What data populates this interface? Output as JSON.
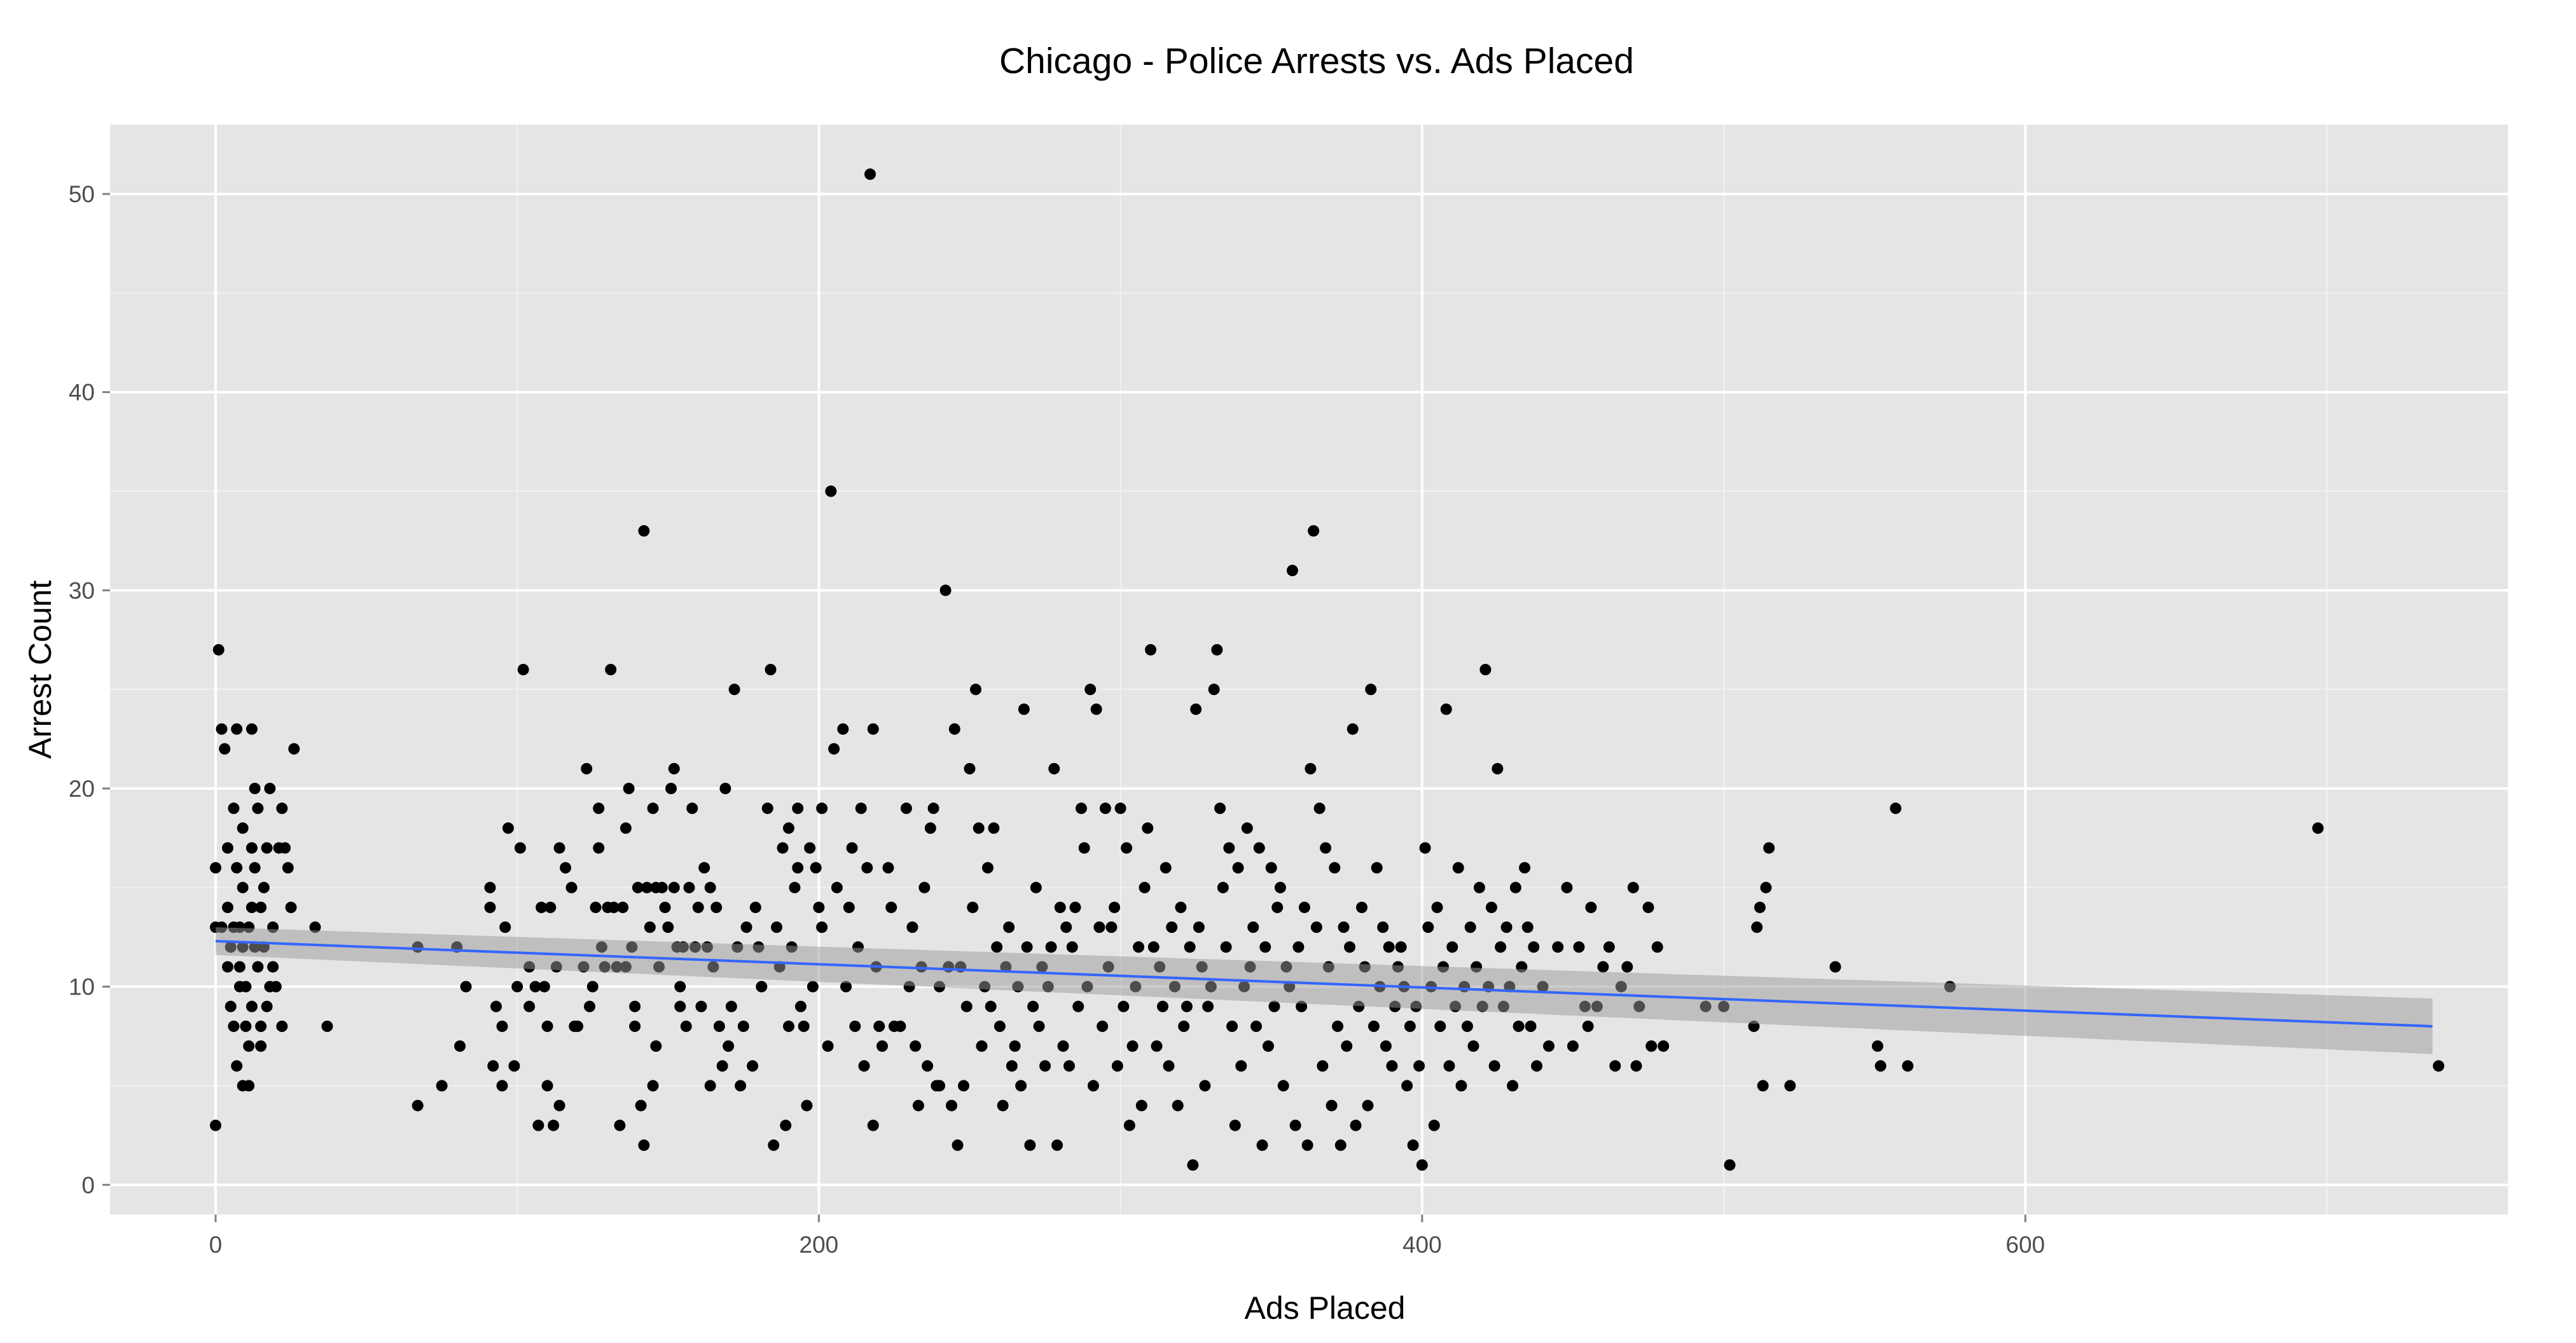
{
  "chart_data": {
    "type": "scatter",
    "title": "Chicago - Police Arrests vs. Ads Placed",
    "xlabel": "Ads Placed",
    "ylabel": "Arrest Count",
    "xlim": [
      -35,
      760
    ],
    "ylim": [
      -1.5,
      53.5
    ],
    "x_ticks": [
      0,
      200,
      400,
      600
    ],
    "y_ticks": [
      0,
      10,
      20,
      30,
      40,
      50
    ],
    "x_tick_labels": [
      "0",
      "200",
      "400",
      "600"
    ],
    "y_tick_labels": [
      "0",
      "10",
      "20",
      "30",
      "40",
      "50"
    ],
    "grid": true,
    "legend": "none",
    "colors": {
      "panel": "#e5e5e5",
      "grid_major": "#ffffff",
      "point": "#000000",
      "fit_line": "#3366ff",
      "confidence_band": "#999999"
    },
    "trend_line": {
      "method": "linear fit with confidence band",
      "x_start": 0,
      "y_start": 12.3,
      "x_end": 735,
      "y_end": 8.0,
      "band_start": [
        11.6,
        13.0
      ],
      "band_end": [
        6.6,
        9.4
      ]
    },
    "points": [
      [
        0,
        16
      ],
      [
        0,
        13
      ],
      [
        0,
        3
      ],
      [
        1,
        27
      ],
      [
        2,
        23
      ],
      [
        2,
        13
      ],
      [
        3,
        22
      ],
      [
        4,
        17
      ],
      [
        4,
        14
      ],
      [
        4,
        11
      ],
      [
        5,
        9
      ],
      [
        5,
        12
      ],
      [
        6,
        19
      ],
      [
        6,
        13
      ],
      [
        6,
        8
      ],
      [
        7,
        6
      ],
      [
        7,
        23
      ],
      [
        7,
        16
      ],
      [
        8,
        11
      ],
      [
        8,
        13
      ],
      [
        8,
        10
      ],
      [
        9,
        18
      ],
      [
        9,
        15
      ],
      [
        9,
        12
      ],
      [
        9,
        5
      ],
      [
        10,
        10
      ],
      [
        10,
        8
      ],
      [
        11,
        7
      ],
      [
        11,
        5
      ],
      [
        11,
        13
      ],
      [
        12,
        23
      ],
      [
        12,
        17
      ],
      [
        12,
        14
      ],
      [
        12,
        9
      ],
      [
        13,
        16
      ],
      [
        13,
        12
      ],
      [
        13,
        20
      ],
      [
        14,
        11
      ],
      [
        14,
        19
      ],
      [
        15,
        14
      ],
      [
        15,
        8
      ],
      [
        15,
        7
      ],
      [
        16,
        15
      ],
      [
        16,
        12
      ],
      [
        17,
        17
      ],
      [
        17,
        9
      ],
      [
        18,
        20
      ],
      [
        18,
        10
      ],
      [
        19,
        13
      ],
      [
        19,
        11
      ],
      [
        20,
        10
      ],
      [
        21,
        17
      ],
      [
        22,
        19
      ],
      [
        22,
        8
      ],
      [
        23,
        17
      ],
      [
        24,
        16
      ],
      [
        25,
        14
      ],
      [
        26,
        22
      ],
      [
        33,
        13
      ],
      [
        37,
        8
      ],
      [
        67,
        12
      ],
      [
        67,
        4
      ],
      [
        75,
        5
      ],
      [
        80,
        12
      ],
      [
        81,
        7
      ],
      [
        83,
        10
      ],
      [
        91,
        14
      ],
      [
        91,
        15
      ],
      [
        92,
        6
      ],
      [
        93,
        9
      ],
      [
        95,
        5
      ],
      [
        95,
        8
      ],
      [
        96,
        13
      ],
      [
        97,
        18
      ],
      [
        99,
        6
      ],
      [
        100,
        10
      ],
      [
        101,
        17
      ],
      [
        102,
        26
      ],
      [
        104,
        9
      ],
      [
        104,
        11
      ],
      [
        106,
        10
      ],
      [
        107,
        3
      ],
      [
        108,
        14
      ],
      [
        109,
        10
      ],
      [
        110,
        5
      ],
      [
        110,
        8
      ],
      [
        111,
        14
      ],
      [
        112,
        3
      ],
      [
        113,
        11
      ],
      [
        114,
        4
      ],
      [
        114,
        17
      ],
      [
        116,
        16
      ],
      [
        118,
        15
      ],
      [
        119,
        8
      ],
      [
        120,
        8
      ],
      [
        122,
        11
      ],
      [
        123,
        21
      ],
      [
        124,
        9
      ],
      [
        125,
        10
      ],
      [
        126,
        14
      ],
      [
        127,
        19
      ],
      [
        127,
        17
      ],
      [
        128,
        12
      ],
      [
        129,
        11
      ],
      [
        130,
        14
      ],
      [
        131,
        26
      ],
      [
        132,
        14
      ],
      [
        133,
        11
      ],
      [
        134,
        3
      ],
      [
        135,
        14
      ],
      [
        136,
        11
      ],
      [
        136,
        18
      ],
      [
        137,
        20
      ],
      [
        138,
        12
      ],
      [
        139,
        8
      ],
      [
        139,
        9
      ],
      [
        140,
        15
      ],
      [
        141,
        4
      ],
      [
        142,
        2
      ],
      [
        142,
        33
      ],
      [
        143,
        15
      ],
      [
        144,
        13
      ],
      [
        145,
        19
      ],
      [
        145,
        5
      ],
      [
        146,
        15
      ],
      [
        146,
        7
      ],
      [
        147,
        11
      ],
      [
        148,
        15
      ],
      [
        149,
        14
      ],
      [
        150,
        13
      ],
      [
        151,
        20
      ],
      [
        152,
        21
      ],
      [
        152,
        15
      ],
      [
        153,
        12
      ],
      [
        154,
        10
      ],
      [
        154,
        9
      ],
      [
        155,
        12
      ],
      [
        156,
        8
      ],
      [
        157,
        15
      ],
      [
        158,
        19
      ],
      [
        159,
        12
      ],
      [
        160,
        14
      ],
      [
        161,
        9
      ],
      [
        162,
        16
      ],
      [
        163,
        12
      ],
      [
        164,
        15
      ],
      [
        164,
        5
      ],
      [
        165,
        11
      ],
      [
        166,
        14
      ],
      [
        167,
        8
      ],
      [
        168,
        6
      ],
      [
        169,
        20
      ],
      [
        170,
        7
      ],
      [
        171,
        9
      ],
      [
        172,
        25
      ],
      [
        173,
        12
      ],
      [
        174,
        5
      ],
      [
        175,
        8
      ],
      [
        176,
        13
      ],
      [
        178,
        6
      ],
      [
        179,
        14
      ],
      [
        180,
        12
      ],
      [
        181,
        10
      ],
      [
        183,
        19
      ],
      [
        184,
        26
      ],
      [
        185,
        2
      ],
      [
        186,
        13
      ],
      [
        187,
        11
      ],
      [
        188,
        17
      ],
      [
        189,
        3
      ],
      [
        190,
        8
      ],
      [
        190,
        18
      ],
      [
        191,
        12
      ],
      [
        192,
        15
      ],
      [
        193,
        19
      ],
      [
        193,
        16
      ],
      [
        194,
        9
      ],
      [
        195,
        8
      ],
      [
        196,
        4
      ],
      [
        197,
        17
      ],
      [
        198,
        10
      ],
      [
        199,
        16
      ],
      [
        200,
        14
      ],
      [
        201,
        13
      ],
      [
        201,
        19
      ],
      [
        203,
        7
      ],
      [
        204,
        35
      ],
      [
        205,
        22
      ],
      [
        206,
        15
      ],
      [
        208,
        23
      ],
      [
        209,
        10
      ],
      [
        210,
        14
      ],
      [
        211,
        17
      ],
      [
        212,
        8
      ],
      [
        213,
        12
      ],
      [
        214,
        19
      ],
      [
        215,
        6
      ],
      [
        216,
        16
      ],
      [
        217,
        51
      ],
      [
        218,
        23
      ],
      [
        218,
        3
      ],
      [
        219,
        11
      ],
      [
        220,
        8
      ],
      [
        221,
        7
      ],
      [
        223,
        16
      ],
      [
        224,
        14
      ],
      [
        225,
        8
      ],
      [
        227,
        8
      ],
      [
        229,
        19
      ],
      [
        230,
        10
      ],
      [
        231,
        13
      ],
      [
        232,
        7
      ],
      [
        233,
        4
      ],
      [
        234,
        11
      ],
      [
        235,
        15
      ],
      [
        236,
        6
      ],
      [
        237,
        18
      ],
      [
        238,
        19
      ],
      [
        239,
        5
      ],
      [
        240,
        5
      ],
      [
        240,
        10
      ],
      [
        242,
        30
      ],
      [
        243,
        11
      ],
      [
        244,
        4
      ],
      [
        245,
        23
      ],
      [
        246,
        2
      ],
      [
        247,
        11
      ],
      [
        248,
        5
      ],
      [
        249,
        9
      ],
      [
        250,
        21
      ],
      [
        251,
        14
      ],
      [
        252,
        25
      ],
      [
        253,
        18
      ],
      [
        254,
        7
      ],
      [
        255,
        10
      ],
      [
        256,
        16
      ],
      [
        257,
        9
      ],
      [
        258,
        18
      ],
      [
        259,
        12
      ],
      [
        260,
        8
      ],
      [
        261,
        4
      ],
      [
        262,
        11
      ],
      [
        263,
        13
      ],
      [
        264,
        6
      ],
      [
        265,
        7
      ],
      [
        266,
        10
      ],
      [
        267,
        5
      ],
      [
        268,
        24
      ],
      [
        269,
        12
      ],
      [
        270,
        2
      ],
      [
        271,
        9
      ],
      [
        272,
        15
      ],
      [
        273,
        8
      ],
      [
        274,
        11
      ],
      [
        275,
        6
      ],
      [
        276,
        10
      ],
      [
        277,
        12
      ],
      [
        278,
        21
      ],
      [
        279,
        2
      ],
      [
        280,
        14
      ],
      [
        281,
        7
      ],
      [
        282,
        13
      ],
      [
        283,
        6
      ],
      [
        284,
        12
      ],
      [
        285,
        14
      ],
      [
        286,
        9
      ],
      [
        287,
        19
      ],
      [
        288,
        17
      ],
      [
        289,
        10
      ],
      [
        290,
        25
      ],
      [
        291,
        5
      ],
      [
        292,
        24
      ],
      [
        293,
        13
      ],
      [
        294,
        8
      ],
      [
        295,
        19
      ],
      [
        296,
        11
      ],
      [
        297,
        13
      ],
      [
        298,
        14
      ],
      [
        299,
        6
      ],
      [
        300,
        19
      ],
      [
        301,
        9
      ],
      [
        302,
        17
      ],
      [
        303,
        3
      ],
      [
        304,
        7
      ],
      [
        305,
        10
      ],
      [
        306,
        12
      ],
      [
        307,
        4
      ],
      [
        308,
        15
      ],
      [
        309,
        18
      ],
      [
        310,
        27
      ],
      [
        311,
        12
      ],
      [
        312,
        7
      ],
      [
        313,
        11
      ],
      [
        314,
        9
      ],
      [
        315,
        16
      ],
      [
        316,
        6
      ],
      [
        317,
        13
      ],
      [
        318,
        10
      ],
      [
        319,
        4
      ],
      [
        320,
        14
      ],
      [
        321,
        8
      ],
      [
        322,
        9
      ],
      [
        323,
        12
      ],
      [
        324,
        1
      ],
      [
        325,
        24
      ],
      [
        326,
        13
      ],
      [
        327,
        11
      ],
      [
        328,
        5
      ],
      [
        329,
        9
      ],
      [
        330,
        10
      ],
      [
        331,
        25
      ],
      [
        332,
        27
      ],
      [
        333,
        19
      ],
      [
        334,
        15
      ],
      [
        335,
        12
      ],
      [
        336,
        17
      ],
      [
        337,
        8
      ],
      [
        338,
        3
      ],
      [
        339,
        16
      ],
      [
        340,
        6
      ],
      [
        341,
        10
      ],
      [
        342,
        18
      ],
      [
        343,
        11
      ],
      [
        344,
        13
      ],
      [
        345,
        8
      ],
      [
        346,
        17
      ],
      [
        347,
        2
      ],
      [
        348,
        12
      ],
      [
        349,
        7
      ],
      [
        350,
        16
      ],
      [
        351,
        9
      ],
      [
        352,
        14
      ],
      [
        353,
        15
      ],
      [
        354,
        5
      ],
      [
        355,
        11
      ],
      [
        356,
        10
      ],
      [
        357,
        31
      ],
      [
        358,
        3
      ],
      [
        359,
        12
      ],
      [
        360,
        9
      ],
      [
        361,
        14
      ],
      [
        362,
        2
      ],
      [
        363,
        21
      ],
      [
        364,
        33
      ],
      [
        365,
        13
      ],
      [
        366,
        19
      ],
      [
        367,
        6
      ],
      [
        368,
        17
      ],
      [
        369,
        11
      ],
      [
        370,
        4
      ],
      [
        371,
        16
      ],
      [
        372,
        8
      ],
      [
        373,
        2
      ],
      [
        374,
        13
      ],
      [
        375,
        7
      ],
      [
        376,
        12
      ],
      [
        377,
        23
      ],
      [
        378,
        3
      ],
      [
        379,
        9
      ],
      [
        380,
        14
      ],
      [
        381,
        11
      ],
      [
        382,
        4
      ],
      [
        383,
        25
      ],
      [
        384,
        8
      ],
      [
        385,
        16
      ],
      [
        386,
        10
      ],
      [
        387,
        13
      ],
      [
        388,
        7
      ],
      [
        389,
        12
      ],
      [
        390,
        6
      ],
      [
        391,
        9
      ],
      [
        392,
        11
      ],
      [
        393,
        12
      ],
      [
        394,
        10
      ],
      [
        395,
        5
      ],
      [
        396,
        8
      ],
      [
        397,
        2
      ],
      [
        398,
        9
      ],
      [
        399,
        6
      ],
      [
        400,
        1
      ],
      [
        401,
        17
      ],
      [
        402,
        13
      ],
      [
        403,
        10
      ],
      [
        404,
        3
      ],
      [
        405,
        14
      ],
      [
        406,
        8
      ],
      [
        407,
        11
      ],
      [
        408,
        24
      ],
      [
        409,
        6
      ],
      [
        410,
        12
      ],
      [
        411,
        9
      ],
      [
        412,
        16
      ],
      [
        413,
        5
      ],
      [
        414,
        10
      ],
      [
        415,
        8
      ],
      [
        416,
        13
      ],
      [
        417,
        7
      ],
      [
        418,
        11
      ],
      [
        419,
        15
      ],
      [
        420,
        9
      ],
      [
        421,
        26
      ],
      [
        422,
        10
      ],
      [
        423,
        14
      ],
      [
        424,
        6
      ],
      [
        425,
        21
      ],
      [
        426,
        12
      ],
      [
        427,
        9
      ],
      [
        428,
        13
      ],
      [
        429,
        10
      ],
      [
        430,
        5
      ],
      [
        431,
        15
      ],
      [
        432,
        8
      ],
      [
        433,
        11
      ],
      [
        434,
        16
      ],
      [
        435,
        13
      ],
      [
        436,
        8
      ],
      [
        437,
        12
      ],
      [
        438,
        6
      ],
      [
        440,
        10
      ],
      [
        442,
        7
      ],
      [
        445,
        12
      ],
      [
        448,
        15
      ],
      [
        450,
        7
      ],
      [
        452,
        12
      ],
      [
        454,
        9
      ],
      [
        455,
        8
      ],
      [
        456,
        14
      ],
      [
        458,
        9
      ],
      [
        460,
        11
      ],
      [
        462,
        12
      ],
      [
        464,
        6
      ],
      [
        466,
        10
      ],
      [
        468,
        11
      ],
      [
        470,
        15
      ],
      [
        471,
        6
      ],
      [
        472,
        9
      ],
      [
        475,
        14
      ],
      [
        476,
        7
      ],
      [
        478,
        12
      ],
      [
        480,
        7
      ],
      [
        494,
        9
      ],
      [
        500,
        9
      ],
      [
        502,
        1
      ],
      [
        510,
        8
      ],
      [
        511,
        13
      ],
      [
        512,
        14
      ],
      [
        513,
        5
      ],
      [
        514,
        15
      ],
      [
        515,
        17
      ],
      [
        522,
        5
      ],
      [
        537,
        11
      ],
      [
        551,
        7
      ],
      [
        552,
        6
      ],
      [
        557,
        19
      ],
      [
        561,
        6
      ],
      [
        575,
        10
      ],
      [
        697,
        18
      ],
      [
        737,
        6
      ]
    ]
  }
}
